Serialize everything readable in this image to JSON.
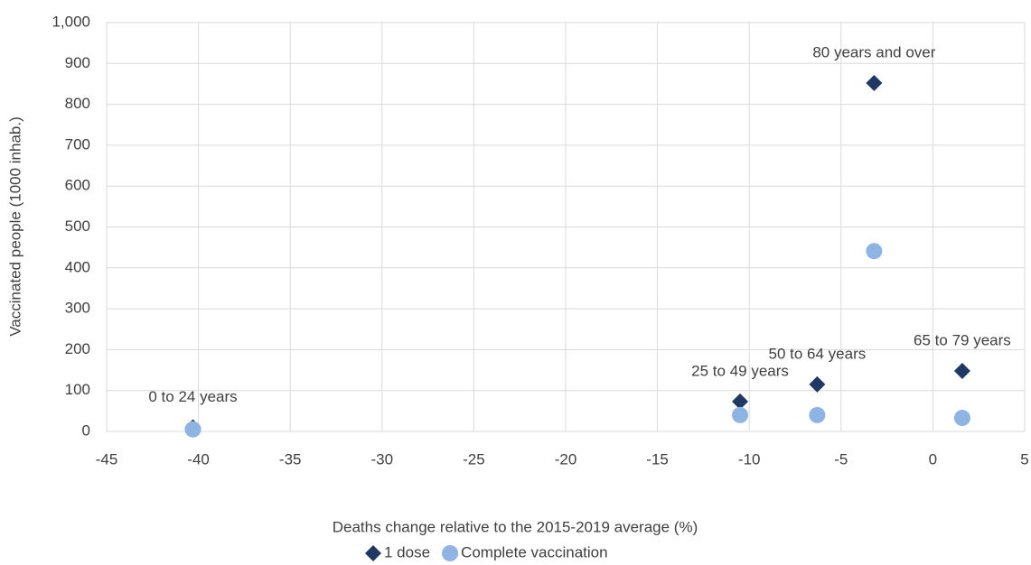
{
  "chart_data": {
    "type": "scatter",
    "x_label": "Deaths change relative to the 2015-2019  average (%)",
    "y_label": "Vaccinated people (1000 inhab.)",
    "xlim": [
      -45,
      5
    ],
    "xticks": [
      -45,
      -40,
      -35,
      -30,
      -25,
      -20,
      -15,
      -10,
      -5,
      0,
      5
    ],
    "ylim": [
      0,
      1000
    ],
    "yticks": [
      0,
      100,
      200,
      300,
      400,
      500,
      600,
      700,
      800,
      900,
      {
        "value": 1000,
        "label": "1,000"
      }
    ],
    "grid": true,
    "legend": "bottom",
    "series": [
      {
        "name": "1 dose",
        "color": "#1f3864",
        "marker": "diamond",
        "x": [
          -40.3,
          -10.5,
          -6.3,
          -3.2,
          1.6
        ],
        "values": [
          10,
          73,
          115,
          852,
          148
        ],
        "point_labels": [
          "0 to 24 years",
          "25 to 49 years",
          "50 to 64 years",
          "80 years and over",
          "65 to 79 years"
        ]
      },
      {
        "name": "Complete vaccination",
        "color": "#8eb4e3",
        "marker": "circle",
        "x": [
          -40.3,
          -10.5,
          -6.3,
          -3.2,
          1.6
        ],
        "values": [
          5,
          40,
          40,
          441,
          33
        ]
      }
    ]
  }
}
